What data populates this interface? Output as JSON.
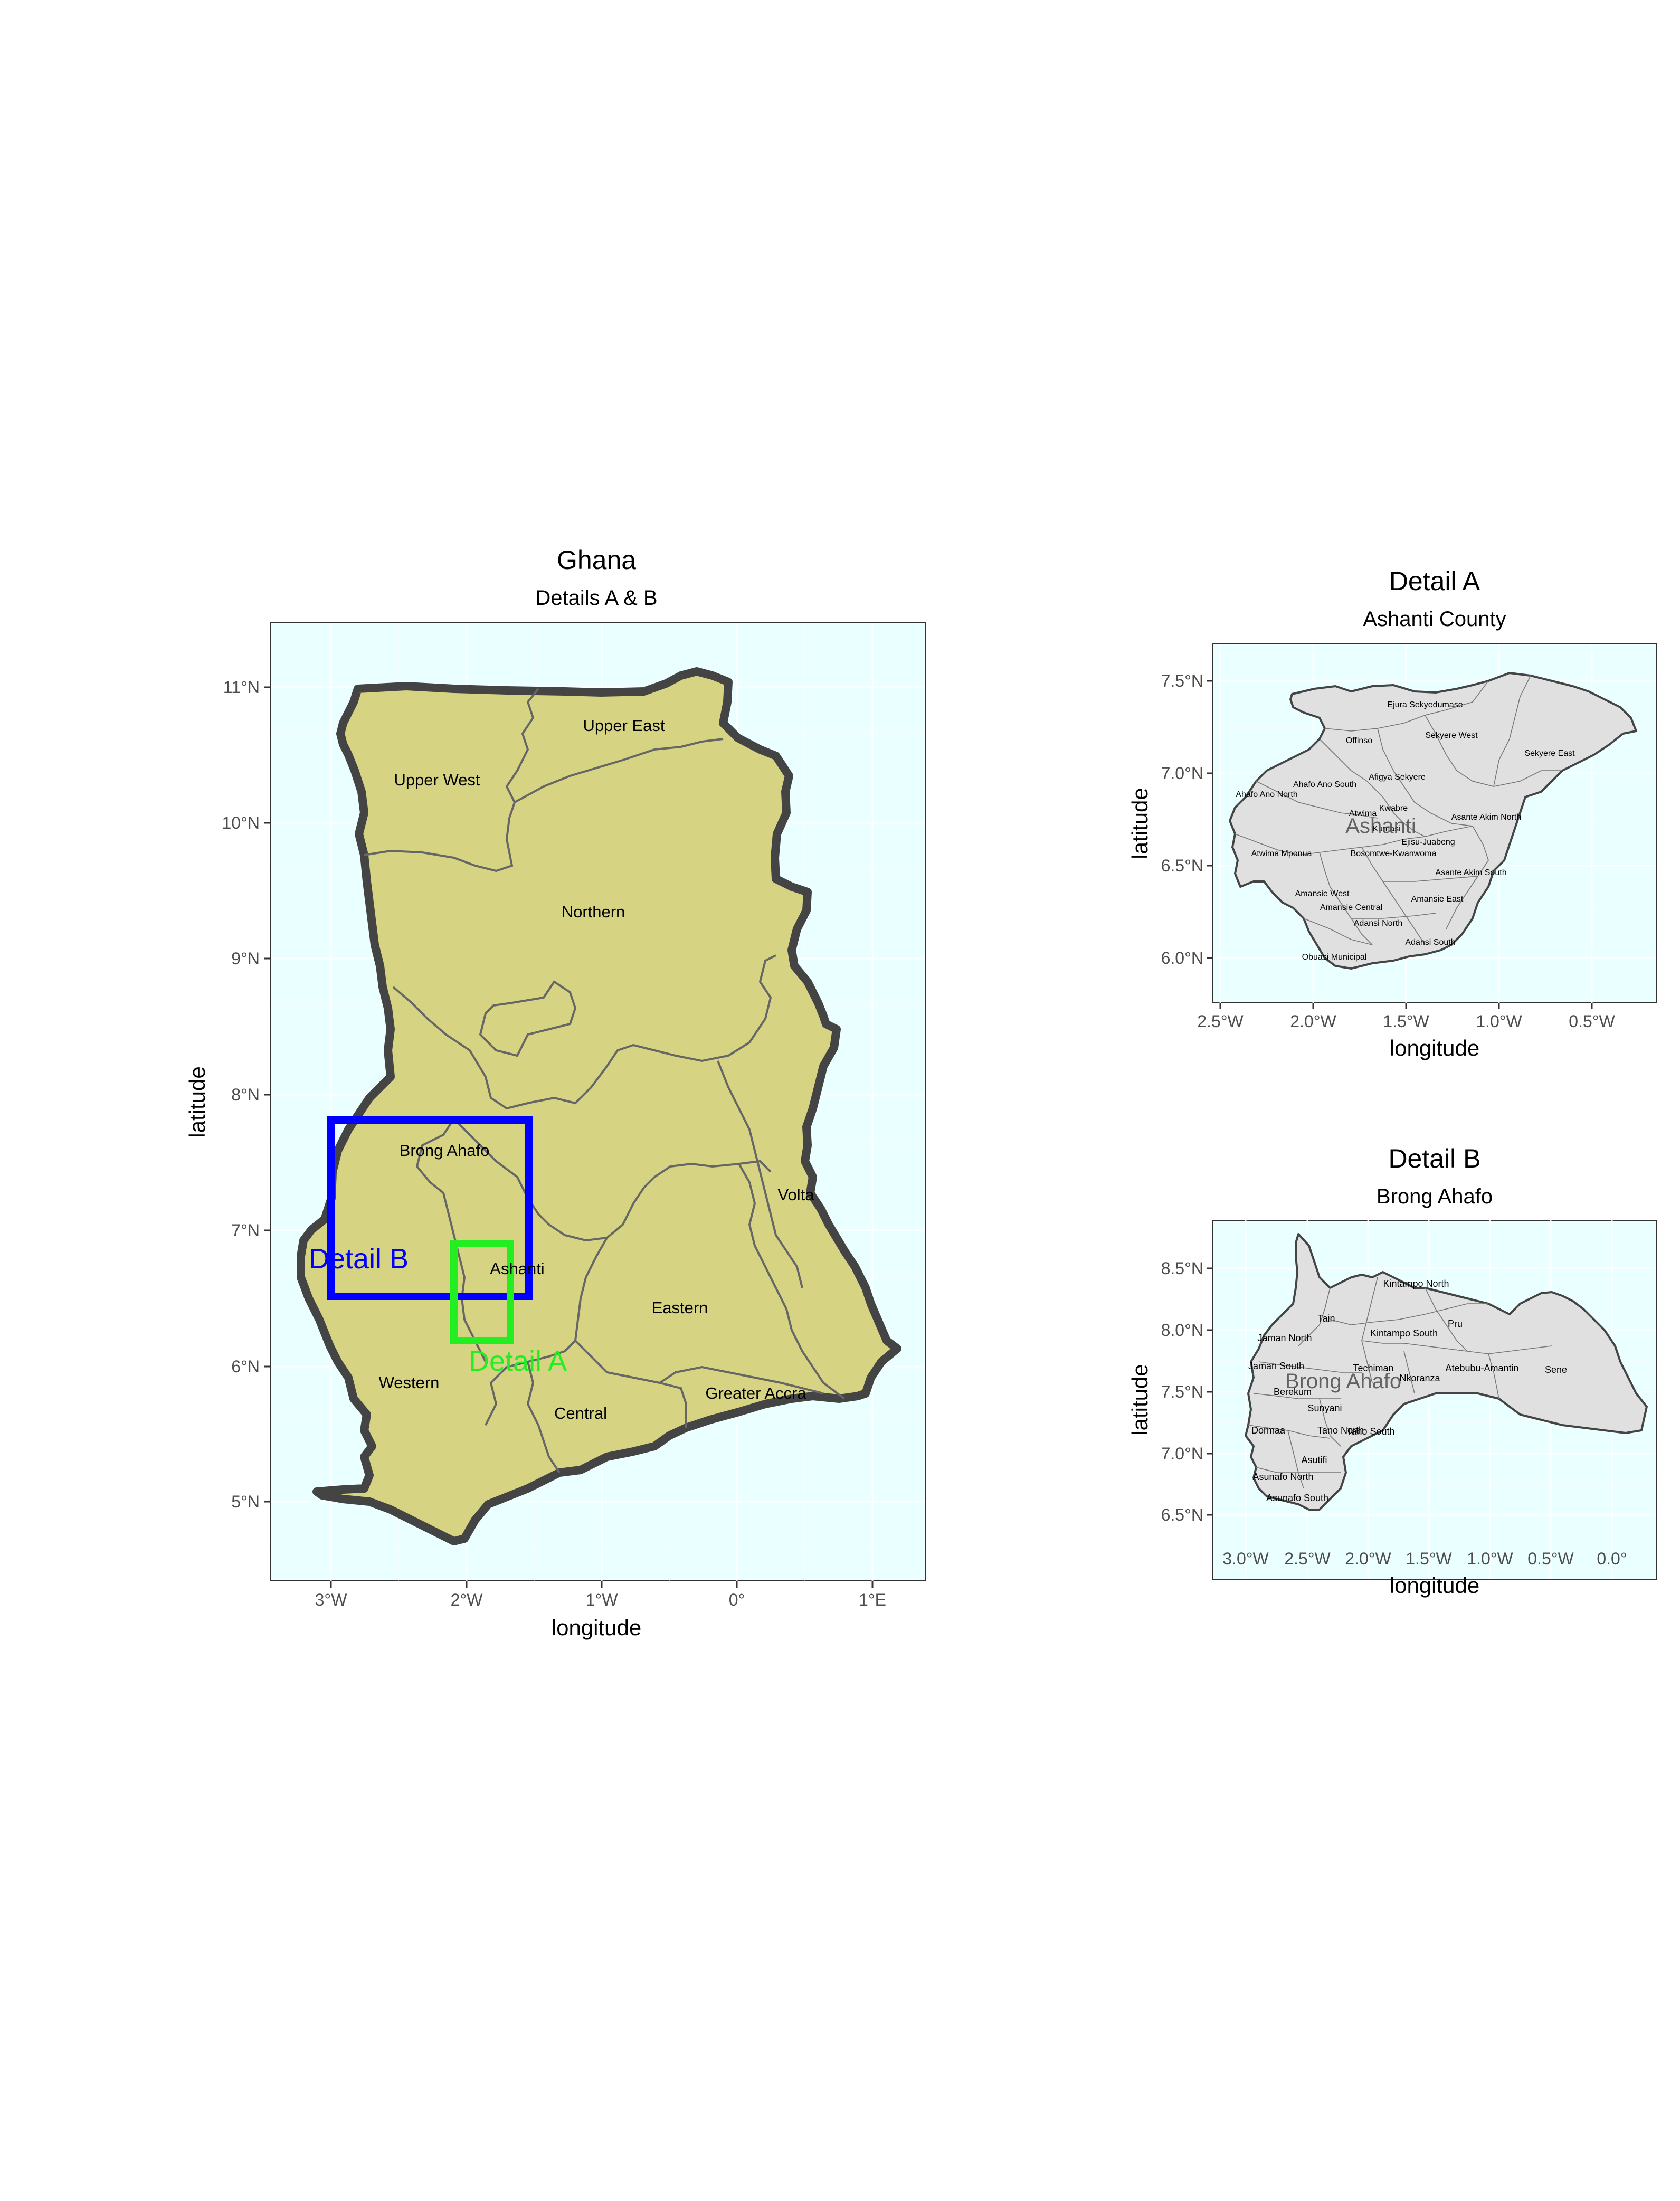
{
  "main_map": {
    "title": "Ghana",
    "subtitle": "Details A & B",
    "xlabel": "longitude",
    "ylabel": "latitude",
    "x_ticks": [
      "3°W",
      "2°W",
      "1°W",
      "0°",
      "1°E"
    ],
    "y_ticks": [
      "5°N",
      "6°N",
      "7°N",
      "8°N",
      "9°N",
      "10°N",
      "11°N"
    ],
    "regions": [
      "Upper East",
      "Upper West",
      "Northern",
      "Brong Ahafo",
      "Volta",
      "Ashanti",
      "Eastern",
      "Western",
      "Central",
      "Greater Accra"
    ],
    "boxes": [
      {
        "label": "Detail B",
        "color": "#0000ff",
        "lon_min": -2.98,
        "lon_max": -1.5,
        "lat_min": 6.5,
        "lat_max": 7.8
      },
      {
        "label": "Detail A",
        "color": "#22ee22",
        "lon_min": -2.1,
        "lon_max": -1.68,
        "lat_min": 6.17,
        "lat_max": 6.9
      }
    ],
    "fill_color": "#d6d382",
    "background_color": "#eaffff"
  },
  "detail_a": {
    "title": "Detail A",
    "subtitle": "Ashanti County",
    "xlabel": "longitude",
    "ylabel": "latitude",
    "x_ticks": [
      "2.5°W",
      "2.0°W",
      "1.5°W",
      "1.0°W",
      "0.5°W"
    ],
    "y_ticks": [
      "6.0°N",
      "6.5°N",
      "7.0°N",
      "7.5°N"
    ],
    "overlay_label": "Ashanti",
    "districts": [
      "Ejura Sekyedumase",
      "Offinso",
      "Sekyere West",
      "Sekyere East",
      "Afigya Sekyere",
      "Ahafo Ano South",
      "Ahafo Ano North",
      "Kwabre",
      "Atwima",
      "Asante Akim North",
      "Kumasi",
      "Ejisu-Juabeng",
      "Atwima Mponua",
      "Bosomtwe-Kwanwoma",
      "Asante Akim South",
      "Amansie West",
      "Amansie East",
      "Amansie Central",
      "Adansi North",
      "Adansi South",
      "Obuasi Municipal"
    ]
  },
  "detail_b": {
    "title": "Detail B",
    "subtitle": "Brong Ahafo",
    "xlabel": "longitude",
    "ylabel": "latitude",
    "x_ticks": [
      "3.0°W",
      "2.5°W",
      "2.0°W",
      "1.5°W",
      "1.0°W",
      "0.5°W",
      "0.0°"
    ],
    "y_ticks": [
      "6.5°N",
      "7.0°N",
      "7.5°N",
      "8.0°N",
      "8.5°N"
    ],
    "overlay_label": "Brong Ahafo",
    "districts": [
      "Kintampo North",
      "Tain",
      "Pru",
      "Jaman North",
      "Kintampo South",
      "Jaman South",
      "Techiman",
      "Atebubu-Amantin",
      "Sene",
      "Berekum",
      "Nkoranza",
      "Sunyani",
      "Dormaa",
      "Tano North",
      "Tano South",
      "Asutifi",
      "Asunafo North",
      "Asunafo South"
    ]
  }
}
